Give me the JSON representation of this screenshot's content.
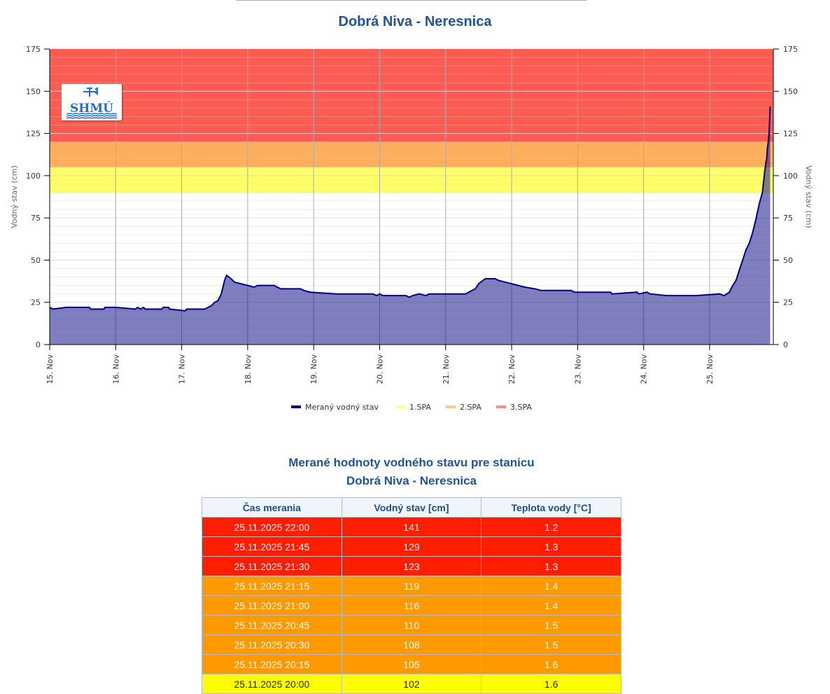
{
  "title": "Dobrá Niva - Neresnica",
  "logo_text": "SHMÚ",
  "chart_data": {
    "type": "area",
    "title": "Dobrá Niva - Neresnica",
    "ylabel": "Vodný stav (cm)",
    "ylabel_right": "Vodný stav (cm)",
    "ylim": [
      0,
      175
    ],
    "yticks": [
      0,
      25,
      50,
      75,
      100,
      125,
      150,
      175
    ],
    "x_unit": "days since 15. Nov 00:00",
    "xlim": [
      0,
      11
    ],
    "xtick_labels": [
      "15. Nov",
      "16. Nov",
      "17. Nov",
      "18. Nov",
      "19. Nov",
      "20. Nov",
      "21. Nov",
      "22. Nov",
      "23. Nov",
      "24. Nov",
      "25. Nov"
    ],
    "thresholds": [
      {
        "name": "1.SPA",
        "from": 90,
        "to": 105,
        "color": "#ffff66"
      },
      {
        "name": "2.SPA",
        "from": 105,
        "to": 120,
        "color": "#ffaf5a"
      },
      {
        "name": "3.SPA",
        "from": 120,
        "to": 175,
        "color": "#ff5b52"
      }
    ],
    "legend": [
      "Meraný vodný stav",
      "1.SPA",
      "2.SPA",
      "3.SPA"
    ],
    "legend_position": "bottom",
    "series": [
      {
        "name": "Meraný vodný stav",
        "color": "#000080",
        "x": [
          0,
          0.05,
          0.25,
          0.6,
          0.62,
          0.82,
          0.84,
          1.0,
          1.3,
          1.33,
          1.38,
          1.42,
          1.45,
          1.7,
          1.72,
          1.8,
          1.82,
          2.05,
          2.08,
          2.35,
          2.4,
          2.45,
          2.5,
          2.55,
          2.6,
          2.65,
          2.68,
          2.75,
          2.8,
          2.9,
          3.0,
          3.1,
          3.15,
          3.4,
          3.45,
          3.5,
          3.8,
          3.85,
          3.95,
          4.35,
          4.9,
          4.95,
          5.0,
          5.05,
          5.4,
          5.45,
          5.5,
          5.6,
          5.7,
          5.75,
          6.3,
          6.35,
          6.45,
          6.5,
          6.6,
          6.75,
          6.8,
          6.9,
          7.0,
          7.1,
          7.2,
          7.35,
          7.45,
          7.9,
          7.95,
          8.5,
          8.52,
          8.9,
          8.93,
          9.05,
          9.1,
          9.35,
          9.8,
          10.15,
          10.22,
          10.3,
          10.35,
          10.4,
          10.45,
          10.5,
          10.55,
          10.6,
          10.65,
          10.7,
          10.75,
          10.8,
          10.833,
          10.844,
          10.854,
          10.865,
          10.875,
          10.885,
          10.896,
          10.906,
          10.917
        ],
        "y": [
          22,
          21,
          22,
          22,
          21,
          21,
          22,
          22,
          21,
          22,
          21,
          22,
          21,
          21,
          22,
          22,
          21,
          20,
          21,
          21,
          22,
          23,
          25,
          26,
          30,
          38,
          41,
          39,
          37,
          36,
          35,
          34,
          35,
          35,
          34,
          33,
          33,
          32,
          31,
          30,
          30,
          29,
          30,
          29,
          29,
          28,
          29,
          30,
          29,
          30,
          30,
          31,
          33,
          36,
          39,
          39,
          38,
          37,
          36,
          35,
          34,
          33,
          32,
          32,
          31,
          31,
          30,
          31,
          30,
          31,
          30,
          29,
          29,
          30,
          29,
          31,
          35,
          38,
          44,
          50,
          56,
          60,
          66,
          74,
          83,
          90,
          102,
          105,
          108,
          110,
          116,
          119,
          123,
          129,
          141
        ]
      }
    ]
  },
  "table": {
    "title_line1": "Merané hodnoty vodného stavu pre stanicu",
    "title_line2": "Dobrá Niva - Neresnica",
    "headers": [
      "Čas merania",
      "Vodný stav [cm]",
      "Teplota vody [°C]"
    ],
    "colors": {
      "3.SPA": "#ff1e00",
      "2.SPA": "#ff9900",
      "1.SPA": "#ffff00"
    },
    "rows": [
      {
        "time": "25.11.2025 22:00",
        "level": "141",
        "temp": "1.2",
        "status": "3.SPA"
      },
      {
        "time": "25.11.2025 21:45",
        "level": "129",
        "temp": "1.3",
        "status": "3.SPA"
      },
      {
        "time": "25.11.2025 21:30",
        "level": "123",
        "temp": "1.3",
        "status": "3.SPA"
      },
      {
        "time": "25.11.2025 21:15",
        "level": "119",
        "temp": "1.4",
        "status": "2.SPA"
      },
      {
        "time": "25.11.2025 21:00",
        "level": "116",
        "temp": "1.4",
        "status": "2.SPA"
      },
      {
        "time": "25.11.2025 20:45",
        "level": "110",
        "temp": "1.5",
        "status": "2.SPA"
      },
      {
        "time": "25.11.2025 20:30",
        "level": "108",
        "temp": "1.5",
        "status": "2.SPA"
      },
      {
        "time": "25.11.2025 20:15",
        "level": "105",
        "temp": "1.6",
        "status": "2.SPA"
      },
      {
        "time": "25.11.2025 20:00",
        "level": "102",
        "temp": "1.6",
        "status": "1.SPA"
      }
    ]
  }
}
